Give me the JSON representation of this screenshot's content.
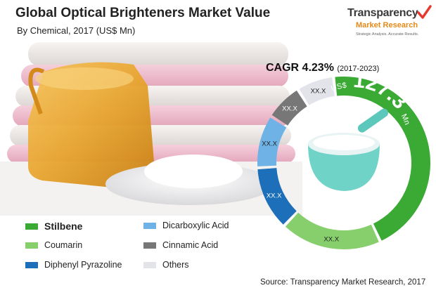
{
  "title": "Global Optical Brighteners Market Value",
  "subtitle": "By Chemical, 2017 (US$ Mn)",
  "logo": {
    "name_line1": "Transparency",
    "name_line2": "Market Research",
    "tagline": "Strategic Analysis. Accurate Results.",
    "colors": {
      "text": "#3a3a3a",
      "accent": "#e38a1a",
      "check": "#e63a2e"
    }
  },
  "cagr": {
    "label": "CAGR 4.23%",
    "period": "(2017-2023)"
  },
  "center_value": {
    "currency": "US$",
    "value": "127.3",
    "unit": "Mn"
  },
  "chart_data": {
    "type": "pie",
    "title": "Global Optical Brighteners Market Value",
    "subtitle": "By Chemical, 2017 (US$ Mn)",
    "total": 127.3,
    "slices": [
      {
        "name": "Stilbene",
        "label": "",
        "color": "#3aaa35",
        "share": 0.45
      },
      {
        "name": "Coumarin",
        "label": "XX.X",
        "color": "#86cf6c",
        "share": 0.19
      },
      {
        "name": "Diphenyl Pyrazoline",
        "label": "XX.X",
        "color": "#1c6fb8",
        "share": 0.12
      },
      {
        "name": "Dicarboxylic Acid",
        "label": "XX.X",
        "color": "#6fb3e6",
        "share": 0.1
      },
      {
        "name": "Cinnamic Acid",
        "label": "XX.X",
        "color": "#777777",
        "share": 0.07
      },
      {
        "name": "Others",
        "label": "XX.X",
        "color": "#e3e3ea",
        "share": 0.07
      }
    ],
    "legend_position": "bottom-left"
  },
  "legend": [
    {
      "label": "Stilbene",
      "color": "#3aaa35",
      "bold": true
    },
    {
      "label": "Coumarin",
      "color": "#86cf6c"
    },
    {
      "label": "Diphenyl Pyrazoline",
      "color": "#1c6fb8"
    },
    {
      "label": "Dicarboxylic Acid",
      "color": "#6fb3e6"
    },
    {
      "label": "Cinnamic Acid",
      "color": "#777777"
    },
    {
      "label": "Others",
      "color": "#e3e3ea"
    }
  ],
  "source": "Source: Transparency Market Research, 2017"
}
